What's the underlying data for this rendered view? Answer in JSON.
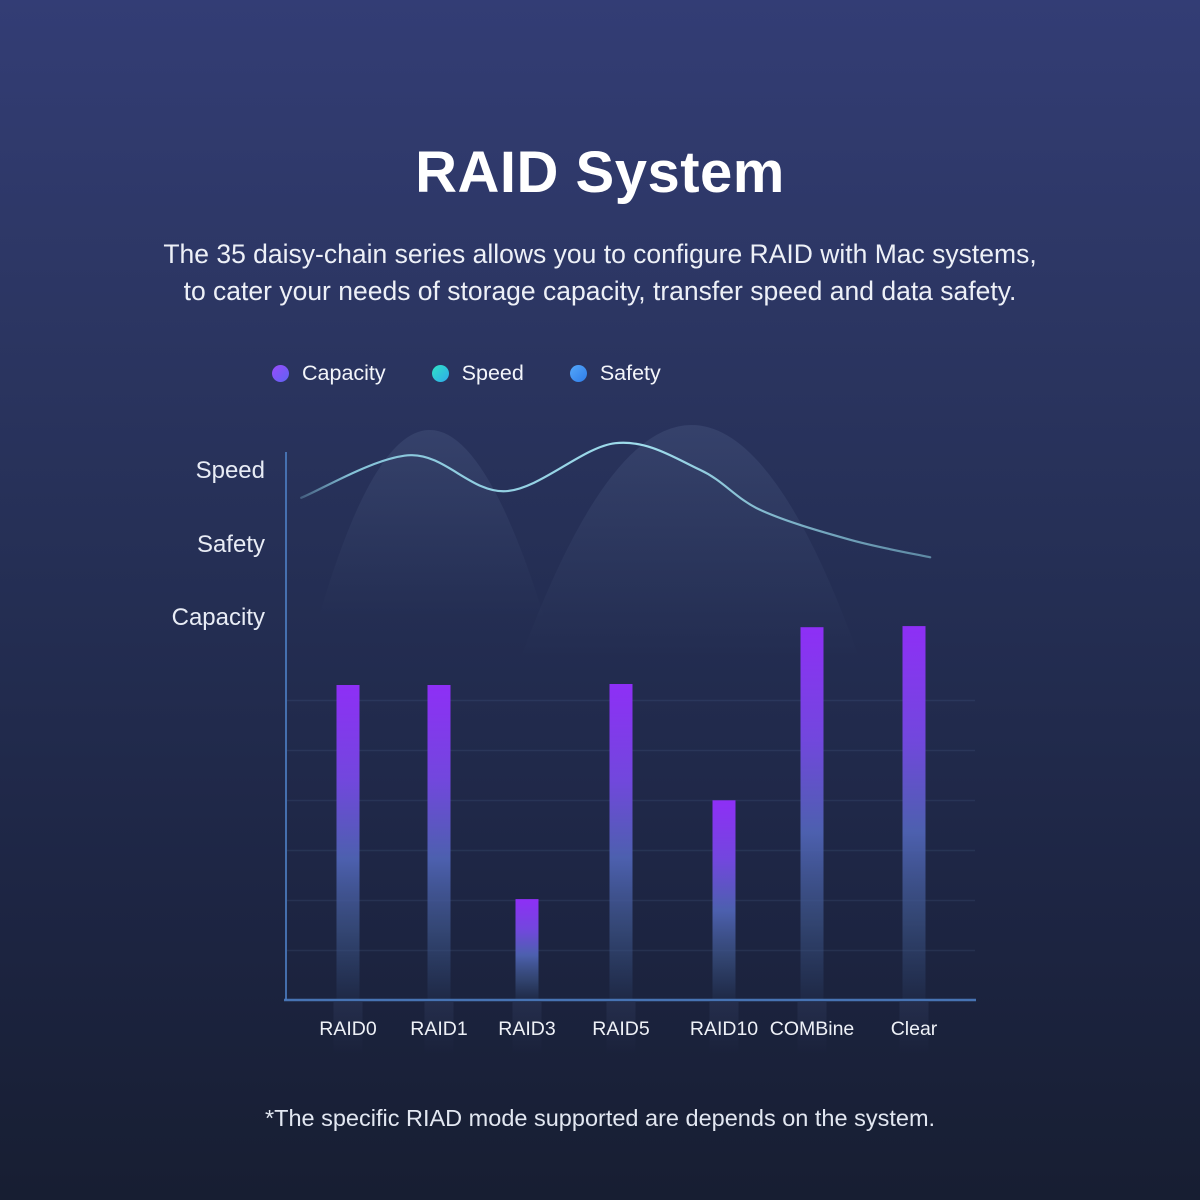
{
  "page": {
    "title": "RAID System",
    "subtitle_line1": "The 35 daisy-chain series allows you to configure RAID with Mac systems,",
    "subtitle_line2": "to cater your needs of storage capacity, transfer speed and data safety.",
    "footnote": "*The specific RIAD mode supported are depends on the system."
  },
  "legend": {
    "position": "top-left of chart",
    "items": [
      {
        "label": "Capacity",
        "dot_colors": [
          "#9a4bfc",
          "#5d63f2"
        ]
      },
      {
        "label": "Speed",
        "dot_colors": [
          "#2fe3c4",
          "#2fa9ec"
        ]
      },
      {
        "label": "Safety",
        "dot_colors": [
          "#54a7fa",
          "#2f7de9"
        ]
      }
    ]
  },
  "chart": {
    "y_axis_labels": [
      "Speed",
      "Safety",
      "Capacity"
    ]
  },
  "chart_data": {
    "type": "bar",
    "title": "RAID System",
    "categories": [
      "RAID0",
      "RAID1",
      "RAID3",
      "RAID5",
      "RAID10",
      "COMBine",
      "Clear"
    ],
    "series": [
      {
        "name": "Capacity",
        "type": "bar",
        "unit": "relative bar height, 0-1 of plot height (no numeric axis shown)",
        "values": [
          0.575,
          0.575,
          0.183,
          0.577,
          0.364,
          0.681,
          0.683
        ]
      },
      {
        "name": "Speed",
        "type": "line",
        "unit": "decorative wave; points as [x 0-1 across plot, height 0-1 of plot]",
        "points": [
          [
            0.022,
            0.918
          ],
          [
            0.181,
            0.996
          ],
          [
            0.319,
            0.93
          ],
          [
            0.478,
            1.018
          ],
          [
            0.601,
            0.969
          ],
          [
            0.688,
            0.896
          ],
          [
            0.819,
            0.841
          ],
          [
            0.935,
            0.809
          ]
        ]
      }
    ],
    "xlabel": "",
    "ylabel": "qualitative rows top-to-bottom: Speed, Safety, Capacity",
    "legend_position": "top",
    "grid": "faint horizontal lines in lower half of plot",
    "colors": {
      "bar_top": "#8e2ff6",
      "bar_mid": "#4f63b4",
      "bar_fade": "#36507e",
      "line": "#96dcee",
      "axis": "#4c7cc0",
      "grid": "rgba(130,165,220,0.10)",
      "background_top": "#333d75",
      "background_bottom": "#171e32"
    }
  }
}
